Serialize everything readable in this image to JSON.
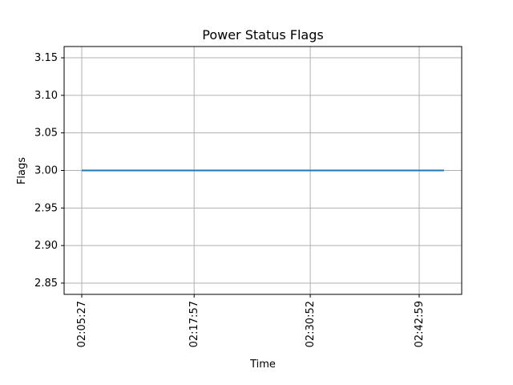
{
  "chart_data": {
    "type": "line",
    "title": "Power Status Flags",
    "xlabel": "Time",
    "ylabel": "Flags",
    "x_ticks": [
      "02:05:27",
      "02:17:57",
      "02:30:52",
      "02:42:59"
    ],
    "x_tick_seconds": [
      7527,
      8277,
      9052,
      9779
    ],
    "x_range_seconds": [
      7527,
      9945
    ],
    "y_ticks": [
      "2.85",
      "2.90",
      "2.95",
      "3.00",
      "3.05",
      "3.10",
      "3.15"
    ],
    "y_tick_values": [
      2.85,
      2.9,
      2.95,
      3.0,
      3.05,
      3.1,
      3.15
    ],
    "ylim": [
      2.835,
      3.165
    ],
    "grid": true,
    "series": [
      {
        "values": [
          3.0,
          3.0
        ]
      }
    ],
    "colors": {
      "line": "#1f77b4",
      "grid": "#b0b0b0",
      "axis": "#000000"
    }
  }
}
